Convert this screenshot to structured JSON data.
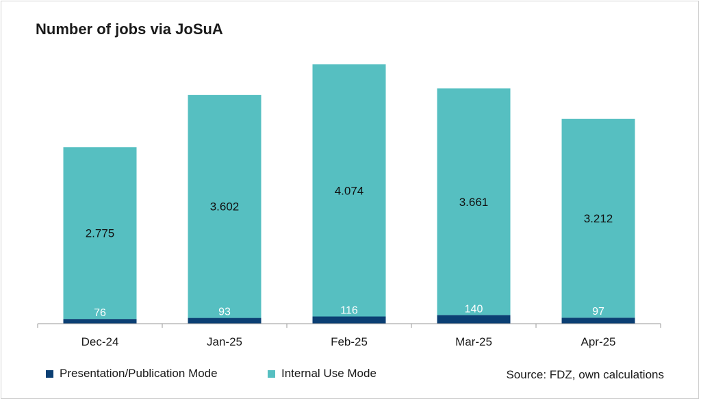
{
  "chart_data": {
    "type": "bar",
    "stacked": true,
    "title": "Number of jobs via JoSuA",
    "xlabel": "",
    "ylabel": "",
    "ylim": [
      0,
      4600
    ],
    "grid": false,
    "legend_placement": "bottom-left",
    "categories": [
      "Dec-24",
      "Jan-25",
      "Feb-25",
      "Mar-25",
      "Apr-25"
    ],
    "series": [
      {
        "name": "Presentation/Publication Mode",
        "values": [
          76,
          93,
          116,
          140,
          97
        ],
        "labels": [
          "76",
          "93",
          "116",
          "140",
          "97"
        ],
        "color": "#0b3f73"
      },
      {
        "name": "Internal Use Mode",
        "values": [
          2775,
          3602,
          4074,
          3661,
          3212
        ],
        "labels": [
          "2.775",
          "3.602",
          "4.074",
          "3.661",
          "3.212"
        ],
        "color": "#56bfc1"
      }
    ],
    "source": "Source: FDZ, own calculations"
  }
}
